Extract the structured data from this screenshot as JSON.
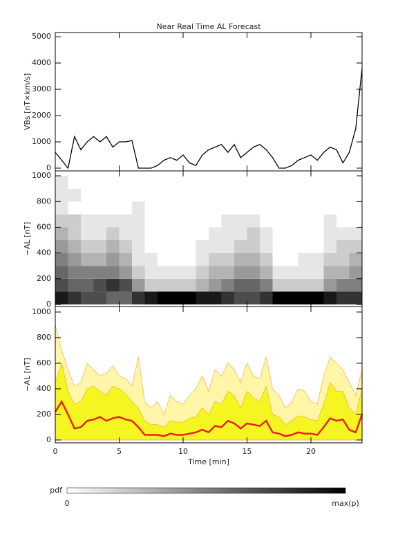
{
  "chart_data": [
    {
      "type": "line",
      "title": "Near Real Time AL Forecast",
      "ylabel": "VBs [nT×km/s]",
      "color": "#000000",
      "xlim": [
        0,
        24
      ],
      "ylim": [
        -105,
        5160
      ],
      "yticks": [
        0,
        1000,
        2000,
        3000,
        4000,
        5000
      ],
      "x": [
        0,
        0.5,
        1,
        1.5,
        2,
        2.5,
        3,
        3.5,
        4,
        4.5,
        5,
        5.5,
        6,
        6.5,
        7,
        7.5,
        8,
        8.5,
        9,
        9.5,
        10,
        10.5,
        11,
        11.5,
        12,
        12.5,
        13,
        13.5,
        14,
        14.5,
        15,
        15.5,
        16,
        16.5,
        17,
        17.5,
        18,
        18.5,
        19,
        19.5,
        20,
        20.5,
        21,
        21.5,
        22,
        22.5,
        23,
        23.5,
        24
      ],
      "values": [
        600,
        300,
        0,
        1200,
        700,
        1000,
        1200,
        1000,
        1200,
        800,
        1000,
        1000,
        1050,
        0,
        0,
        0,
        100,
        300,
        400,
        300,
        500,
        200,
        100,
        500,
        700,
        800,
        900,
        600,
        900,
        400,
        600,
        800,
        900,
        700,
        400,
        0,
        0,
        100,
        300,
        400,
        500,
        300,
        600,
        800,
        700,
        200,
        600,
        1500,
        3800
      ]
    },
    {
      "type": "heatmap",
      "ylabel": "−AL [nT]",
      "xlim": [
        0,
        24
      ],
      "ylim": [
        -16,
        1038
      ],
      "yticks": [
        0,
        200,
        400,
        600,
        800,
        1000
      ],
      "x_bins": [
        0,
        1,
        2,
        3,
        4,
        5,
        6,
        7,
        8,
        9,
        10,
        11,
        12,
        13,
        14,
        15,
        16,
        17,
        18,
        19,
        20,
        21,
        22,
        23,
        24
      ],
      "y_bins": [
        0,
        100,
        200,
        300,
        400,
        500,
        600,
        700,
        800,
        900,
        1000
      ],
      "z": [
        [
          0.9,
          0.8,
          0.7,
          0.7,
          0.6,
          0.6,
          0.8,
          0.9,
          1.0,
          1.0,
          1.0,
          0.9,
          0.9,
          0.8,
          0.7,
          0.7,
          0.8,
          1.0,
          1.0,
          1.0,
          1.0,
          0.9,
          0.8,
          0.8
        ],
        [
          0.7,
          0.6,
          0.6,
          0.7,
          0.8,
          0.7,
          0.4,
          0.2,
          0.2,
          0.2,
          0.2,
          0.3,
          0.4,
          0.5,
          0.6,
          0.6,
          0.5,
          0.2,
          0.2,
          0.2,
          0.2,
          0.4,
          0.5,
          0.5
        ],
        [
          0.6,
          0.5,
          0.5,
          0.5,
          0.5,
          0.4,
          0.2,
          0.1,
          0.1,
          0.1,
          0.1,
          0.2,
          0.3,
          0.3,
          0.4,
          0.4,
          0.3,
          0.1,
          0.1,
          0.1,
          0.1,
          0.3,
          0.3,
          0.4
        ],
        [
          0.5,
          0.4,
          0.3,
          0.3,
          0.4,
          0.3,
          0.1,
          0.1,
          0,
          0,
          0,
          0.1,
          0.2,
          0.2,
          0.3,
          0.3,
          0.2,
          0,
          0,
          0.1,
          0.1,
          0.2,
          0.2,
          0.3
        ],
        [
          0.4,
          0.3,
          0.2,
          0.2,
          0.3,
          0.2,
          0.1,
          0,
          0,
          0,
          0,
          0.1,
          0.1,
          0.1,
          0.2,
          0.2,
          0.1,
          0,
          0,
          0,
          0,
          0.1,
          0.2,
          0.2
        ],
        [
          0.3,
          0.2,
          0.1,
          0.1,
          0.2,
          0.1,
          0.1,
          0,
          0,
          0,
          0,
          0,
          0.1,
          0.1,
          0.1,
          0.2,
          0.1,
          0,
          0,
          0,
          0,
          0.1,
          0.1,
          0.1
        ],
        [
          0.2,
          0.2,
          0.1,
          0.1,
          0.1,
          0.1,
          0.1,
          0,
          0,
          0,
          0,
          0,
          0,
          0.1,
          0.1,
          0.1,
          0,
          0,
          0,
          0,
          0,
          0.1,
          0,
          0
        ],
        [
          0.1,
          0,
          0,
          0,
          0,
          0,
          0.1,
          0,
          0,
          0,
          0,
          0,
          0,
          0,
          0,
          0,
          0,
          0,
          0,
          0,
          0,
          0,
          0,
          0
        ],
        [
          0.1,
          0.1,
          0,
          0,
          0,
          0,
          0,
          0,
          0,
          0,
          0,
          0,
          0,
          0,
          0,
          0,
          0,
          0,
          0,
          0,
          0,
          0,
          0,
          0
        ],
        [
          0.1,
          0,
          0,
          0,
          0,
          0,
          0,
          0,
          0,
          0,
          0,
          0,
          0,
          0,
          0,
          0,
          0,
          0,
          0,
          0,
          0,
          0,
          0,
          0
        ]
      ]
    },
    {
      "type": "band",
      "ylabel": "−AL [nT]",
      "xlabel": "Time [min]",
      "xlim": [
        0,
        24
      ],
      "ylim": [
        -22,
        1043
      ],
      "xticks": [
        0,
        5,
        10,
        15,
        20
      ],
      "yticks": [
        0,
        200,
        400,
        600,
        800,
        1000
      ],
      "x": [
        0,
        0.5,
        1,
        1.5,
        2,
        2.5,
        3,
        3.5,
        4,
        4.5,
        5,
        5.5,
        6,
        6.5,
        7,
        7.5,
        8,
        8.5,
        9,
        9.5,
        10,
        10.5,
        11,
        11.5,
        12,
        12.5,
        13,
        13.5,
        14,
        14.5,
        15,
        15.5,
        16,
        16.5,
        17,
        17.5,
        18,
        18.5,
        19,
        19.5,
        20,
        20.5,
        21,
        21.5,
        22,
        22.5,
        23,
        23.5,
        24
      ],
      "series": [
        {
          "color": "#fff6a8",
          "fill": true,
          "values": [
            900,
            700,
            550,
            420,
            450,
            600,
            550,
            500,
            520,
            580,
            500,
            480,
            420,
            650,
            300,
            250,
            300,
            200,
            350,
            300,
            280,
            350,
            400,
            500,
            380,
            550,
            500,
            600,
            550,
            450,
            600,
            500,
            480,
            650,
            400,
            350,
            250,
            300,
            400,
            380,
            300,
            280,
            500,
            650,
            600,
            550,
            450,
            350,
            550
          ]
        },
        {
          "color": "#f5f521",
          "fill": true,
          "values": [
            450,
            600,
            380,
            280,
            300,
            400,
            420,
            380,
            350,
            420,
            400,
            360,
            300,
            250,
            150,
            120,
            120,
            100,
            150,
            140,
            140,
            170,
            180,
            250,
            200,
            300,
            280,
            380,
            350,
            250,
            380,
            330,
            300,
            420,
            200,
            180,
            120,
            150,
            190,
            180,
            160,
            150,
            280,
            450,
            380,
            380,
            250,
            200,
            400
          ]
        },
        {
          "color": "#e8231d",
          "fill": false,
          "values": [
            220,
            300,
            200,
            90,
            100,
            150,
            160,
            180,
            150,
            170,
            180,
            160,
            150,
            100,
            40,
            40,
            40,
            30,
            50,
            40,
            40,
            50,
            60,
            80,
            60,
            110,
            100,
            150,
            130,
            90,
            130,
            120,
            110,
            150,
            60,
            50,
            30,
            40,
            60,
            50,
            50,
            40,
            100,
            170,
            150,
            160,
            80,
            60,
            200
          ]
        }
      ]
    }
  ],
  "colorbar": {
    "label": "pdf",
    "min_label": "0",
    "max_label": "max(p)"
  }
}
